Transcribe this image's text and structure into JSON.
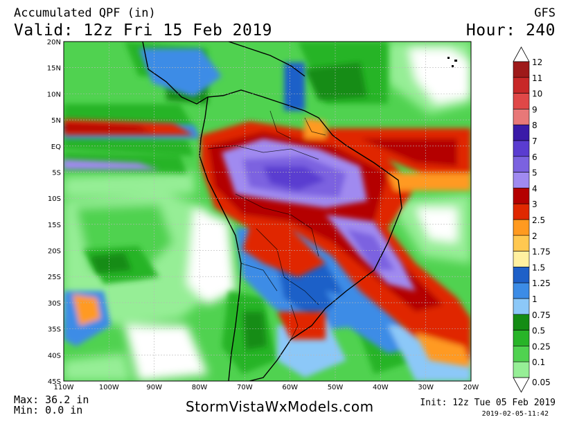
{
  "header": {
    "title": "Accumulated QPF (in)",
    "valid": "Valid: 12z Fri 15 Feb 2019",
    "model": "GFS",
    "hour": "Hour: 240"
  },
  "footer": {
    "max": "Max: 36.2 in",
    "min": "Min: 0.0 in",
    "site": "StormVistaWxModels.com",
    "init": "Init: 12z Tue 05 Feb 2019",
    "stamp": "2019-02-05-11:42"
  },
  "map": {
    "lon_range": [
      -110,
      -20
    ],
    "lat_range": [
      -45,
      20
    ],
    "lon_labels": [
      "110W",
      "100W",
      "90W",
      "80W",
      "70W",
      "60W",
      "50W",
      "40W",
      "30W",
      "20W"
    ],
    "lat_labels": [
      "20N",
      "15N",
      "10N",
      "5N",
      "EQ",
      "5S",
      "10S",
      "15S",
      "20S",
      "25S",
      "30S",
      "35S",
      "40S",
      "45S"
    ]
  },
  "legend": {
    "levels": [
      {
        "label": "12",
        "color": "#9e1a1a"
      },
      {
        "label": "11",
        "color": "#c82828"
      },
      {
        "label": "10",
        "color": "#e04848"
      },
      {
        "label": "9",
        "color": "#e87878"
      },
      {
        "label": "8",
        "color": "#3a1aa8"
      },
      {
        "label": "7",
        "color": "#5a3cd0"
      },
      {
        "label": "6",
        "color": "#7b62e0"
      },
      {
        "label": "5",
        "color": "#a08af0"
      },
      {
        "label": "4",
        "color": "#b40000"
      },
      {
        "label": "3",
        "color": "#e02800"
      },
      {
        "label": "2.5",
        "color": "#ff9a20"
      },
      {
        "label": "2",
        "color": "#ffc850"
      },
      {
        "label": "1.75",
        "color": "#fff0a0"
      },
      {
        "label": "1.5",
        "color": "#1e60c8"
      },
      {
        "label": "1.25",
        "color": "#3c8ce6"
      },
      {
        "label": "1",
        "color": "#8cc8f8"
      },
      {
        "label": "0.75",
        "color": "#148c14"
      },
      {
        "label": "0.5",
        "color": "#28b428"
      },
      {
        "label": "0.25",
        "color": "#50d250"
      },
      {
        "label": "0.1",
        "color": "#96ee96"
      },
      {
        "label": "0.05",
        "color": "#ffffff"
      }
    ]
  }
}
